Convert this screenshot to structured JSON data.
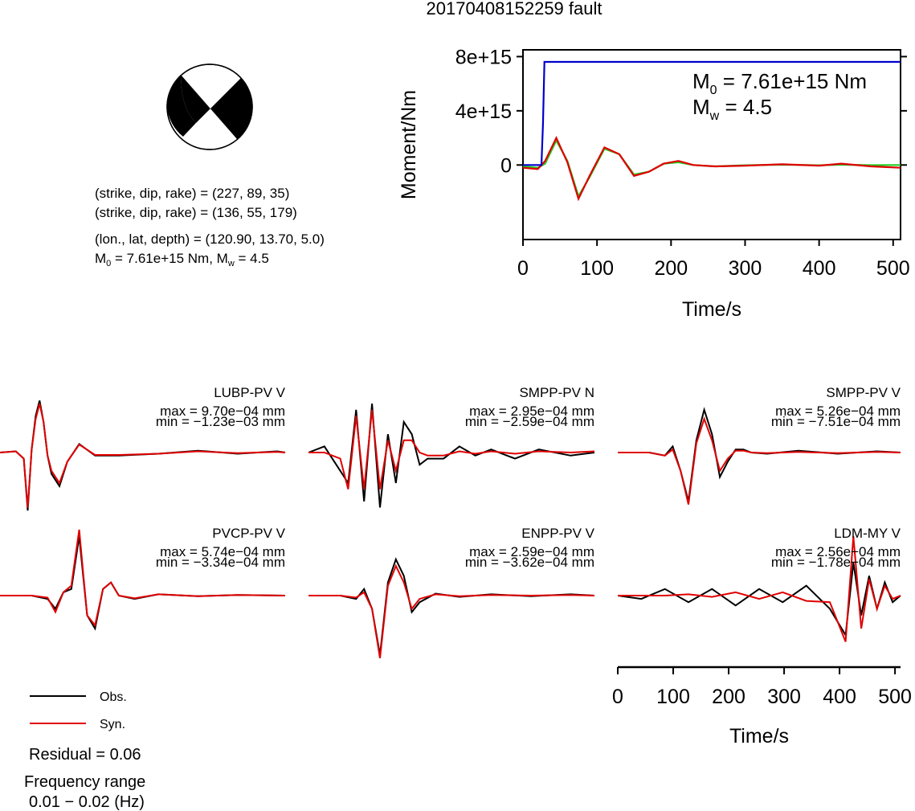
{
  "title": "20170408152259 fault",
  "mechanism": {
    "np1": "(strike, dip, rake) = (227, 89, 35)",
    "np2": "(strike, dip, rake) = (136, 55, 179)",
    "location": "(lon., lat, depth) = (120.90, 13.70, 5.0)",
    "moment_prefix": "M",
    "moment_sub": "0",
    "moment_rest": " = 7.61e+15 Nm, M",
    "mw_sub": "w",
    "mw_rest": " = 4.5"
  },
  "moment_plot": {
    "m0_prefix": "M",
    "m0_sub": "0",
    "m0_rest": " = 7.61e+15 Nm",
    "mw_prefix": "M",
    "mw_sub": "w",
    "mw_rest": " = 4.5",
    "ylabel": "Moment/Nm",
    "xlabel": "Time/s",
    "yticks": [
      "8e+15",
      "4e+15",
      "0"
    ],
    "xticks": [
      "0",
      "100",
      "200",
      "300",
      "400",
      "500"
    ]
  },
  "waveform_axis": {
    "xlabel": "Time/s",
    "xticks": [
      "0",
      "100",
      "200",
      "300",
      "400",
      "500"
    ]
  },
  "legend": {
    "obs_label": "Obs.",
    "syn_label": "Syn.",
    "obs_color": "#000000",
    "syn_color": "#e00000"
  },
  "residual": "Residual = 0.06",
  "freq_title": "Frequency range",
  "freq_range": "0.01 − 0.02 (Hz)",
  "stations": [
    {
      "name": "LUBP-PV V",
      "max": "max = 9.70e−04 mm",
      "min": "min = −1.23e−03 mm"
    },
    {
      "name": "SMPP-PV N",
      "max": "max = 2.95e−04 mm",
      "min": "min = −2.59e−04 mm"
    },
    {
      "name": "SMPP-PV V",
      "max": "max = 5.26e−04 mm",
      "min": "min = −7.51e−04 mm"
    },
    {
      "name": "PVCP-PV V",
      "max": "max = 5.74e−04 mm",
      "min": "min = −3.34e−04 mm"
    },
    {
      "name": "ENPP-PV V",
      "max": "max = 2.59e−04 mm",
      "min": "min = −3.62e−04 mm"
    },
    {
      "name": "LDM-MY V",
      "max": "max = 2.56e−04 mm",
      "min": "min = −1.78e−04 mm"
    }
  ],
  "chart_data": [
    {
      "type": "line",
      "title": "20170408152259 fault",
      "xlabel": "Time/s",
      "ylabel": "Moment/Nm",
      "xlim": [
        0,
        510
      ],
      "ylim": [
        -5500000000000000.0,
        8500000000000000.0
      ],
      "series": [
        {
          "color": "#0000cc",
          "x": [
            0,
            25,
            27,
            29,
            510
          ],
          "y": [
            0,
            0,
            3000000000000000.0,
            7610000000000000.0,
            7610000000000000.0
          ]
        },
        {
          "color": "#e00000",
          "x": [
            0,
            20,
            30,
            45,
            60,
            75,
            90,
            110,
            130,
            150,
            170,
            190,
            210,
            230,
            260,
            300,
            350,
            400,
            430,
            470,
            510
          ],
          "y": [
            -200000000000000.0,
            -300000000000000.0,
            300000000000000.0,
            2000000000000000.0,
            200000000000000.0,
            -2500000000000000.0,
            -800000000000000.0,
            1300000000000000.0,
            800000000000000.0,
            -800000000000000.0,
            -500000000000000.0,
            100000000000000.0,
            300000000000000.0,
            0.0,
            -100000000000000.0,
            -50000000000000.0,
            50000000000000.0,
            -50000000000000.0,
            100000000000000.0,
            -100000000000000.0,
            -200000000000000.0
          ]
        },
        {
          "color": "#22cc22",
          "x": [
            0,
            20,
            30,
            45,
            60,
            75,
            90,
            110,
            130,
            150,
            170,
            190,
            210,
            230,
            260,
            300,
            350,
            400,
            430,
            470,
            510
          ],
          "y": [
            -100000000000000.0,
            -200000000000000.0,
            100000000000000.0,
            1800000000000000.0,
            300000000000000.0,
            -2300000000000000.0,
            -900000000000000.0,
            1200000000000000.0,
            800000000000000.0,
            -700000000000000.0,
            -500000000000000.0,
            100000000000000.0,
            200000000000000.0,
            0.0,
            -100000000000000.0,
            -20000000000000.0,
            20000000000000.0,
            -20000000000000.0,
            20000000000000.0,
            -10000000000000.0,
            0.0
          ]
        }
      ]
    },
    {
      "type": "line",
      "xlabel": "Time/s",
      "xlim": [
        0,
        510
      ],
      "series": [
        {
          "name": "Obs.",
          "color": "#000000"
        },
        {
          "name": "Syn.",
          "color": "#e00000"
        }
      ],
      "panels": [
        {
          "station": "LUBP-PV V",
          "obs": {
            "x": [
              0,
              20,
              30,
              35,
              40,
              45,
              50,
              55,
              60,
              65,
              75,
              85,
              100,
              120,
              150,
              200,
              250,
              300,
              350,
              360
            ],
            "y": [
              0,
              0.02,
              -0.1,
              -0.95,
              0.05,
              0.6,
              0.85,
              0.5,
              -0.05,
              -0.35,
              -0.55,
              -0.15,
              0.14,
              -0.05,
              -0.05,
              -0.02,
              0.03,
              -0.02,
              0.02,
              0.0
            ]
          },
          "syn": {
            "x": [
              0,
              20,
              30,
              35,
              40,
              45,
              50,
              55,
              60,
              65,
              75,
              85,
              100,
              120,
              150,
              200,
              250,
              300,
              350,
              360
            ],
            "y": [
              0,
              0.02,
              -0.1,
              -0.9,
              0.05,
              0.55,
              0.8,
              0.5,
              -0.05,
              -0.3,
              -0.5,
              -0.15,
              0.13,
              -0.04,
              -0.04,
              -0.02,
              0.02,
              -0.01,
              0.01,
              0.0
            ]
          }
        },
        {
          "station": "SMPP-PV N",
          "obs": {
            "x": [
              0,
              20,
              40,
              50,
              60,
              70,
              80,
              90,
              100,
              110,
              120,
              130,
              140,
              150,
              170,
              190,
              210,
              230,
              260,
              290,
              330,
              360
            ],
            "y": [
              0,
              0.1,
              -0.3,
              -0.5,
              0.7,
              -0.8,
              0.8,
              -0.9,
              0.3,
              -0.5,
              0.5,
              0.3,
              -0.2,
              -0.1,
              -0.1,
              0.1,
              -0.05,
              0.05,
              -0.1,
              0.05,
              -0.05,
              0.0
            ]
          },
          "syn": {
            "x": [
              0,
              20,
              40,
              50,
              60,
              70,
              80,
              90,
              100,
              110,
              120,
              130,
              140,
              150,
              170,
              190,
              210,
              230,
              260,
              290,
              330,
              360
            ],
            "y": [
              0,
              0.0,
              -0.1,
              -0.6,
              0.6,
              -0.6,
              0.7,
              -0.6,
              0.2,
              -0.3,
              0.2,
              0.2,
              0.0,
              -0.05,
              -0.05,
              0.02,
              -0.02,
              0.02,
              -0.02,
              0.02,
              0.0,
              0.02
            ]
          }
        },
        {
          "station": "SMPP-PV V",
          "obs": {
            "x": [
              0,
              40,
              60,
              70,
              80,
              90,
              100,
              110,
              120,
              130,
              140,
              150,
              160,
              170,
              190,
              230,
              280,
              330,
              360
            ],
            "y": [
              0,
              0.0,
              -0.05,
              0.1,
              -0.3,
              -0.8,
              0.2,
              0.7,
              0.3,
              -0.4,
              -0.15,
              0.05,
              0.05,
              0.0,
              -0.02,
              0.03,
              -0.02,
              0.02,
              0.0
            ]
          },
          "syn": {
            "x": [
              0,
              40,
              60,
              70,
              80,
              90,
              100,
              110,
              120,
              130,
              140,
              150,
              160,
              170,
              190,
              230,
              280,
              330,
              360
            ],
            "y": [
              0,
              0.0,
              -0.05,
              0.05,
              -0.3,
              -0.85,
              0.15,
              0.55,
              0.2,
              -0.3,
              -0.1,
              0.03,
              0.03,
              0.0,
              -0.01,
              0.01,
              -0.01,
              0.01,
              0.0
            ]
          }
        },
        {
          "station": "PVCP-PV V",
          "obs": {
            "x": [
              0,
              40,
              60,
              70,
              80,
              90,
              100,
              105,
              110,
              120,
              130,
              140,
              150,
              170,
              200,
              250,
              300,
              360
            ],
            "y": [
              0,
              0.0,
              -0.05,
              -0.2,
              0.05,
              0.1,
              0.9,
              0.3,
              -0.3,
              -0.5,
              0.1,
              0.2,
              0.0,
              -0.05,
              0.02,
              -0.01,
              0.01,
              0.0
            ]
          },
          "syn": {
            "x": [
              0,
              40,
              60,
              70,
              80,
              90,
              100,
              105,
              110,
              120,
              130,
              140,
              150,
              170,
              200,
              250,
              300,
              360
            ],
            "y": [
              0,
              0.0,
              -0.03,
              -0.25,
              0.05,
              0.15,
              1.0,
              0.35,
              -0.3,
              -0.45,
              0.1,
              0.2,
              0.0,
              -0.04,
              0.02,
              -0.01,
              0.01,
              0.0
            ]
          }
        },
        {
          "station": "ENPP-PV V",
          "obs": {
            "x": [
              0,
              40,
              60,
              70,
              80,
              90,
              100,
              110,
              120,
              130,
              140,
              160,
              190,
              230,
              280,
              330,
              360
            ],
            "y": [
              0,
              0.0,
              -0.05,
              0.1,
              -0.2,
              -0.9,
              0.2,
              0.55,
              0.3,
              -0.25,
              -0.1,
              0.03,
              -0.02,
              0.02,
              -0.01,
              0.02,
              0.0
            ]
          },
          "syn": {
            "x": [
              0,
              40,
              60,
              70,
              80,
              90,
              100,
              110,
              120,
              130,
              140,
              160,
              190,
              230,
              280,
              330,
              360
            ],
            "y": [
              0,
              0.0,
              -0.03,
              0.05,
              -0.2,
              -0.95,
              0.15,
              0.45,
              0.2,
              -0.2,
              -0.05,
              0.02,
              -0.01,
              0.01,
              0.0,
              0.01,
              0.0
            ]
          }
        },
        {
          "station": "LDM-MY V",
          "obs": {
            "x": [
              0,
              30,
              60,
              90,
              120,
              150,
              180,
              210,
              240,
              270,
              290,
              300,
              310,
              320,
              330,
              340,
              350,
              360
            ],
            "y": [
              0,
              -0.05,
              0.1,
              -0.1,
              0.1,
              -0.15,
              0.1,
              -0.1,
              0.15,
              -0.2,
              -0.6,
              0.5,
              -0.3,
              0.3,
              -0.2,
              0.2,
              -0.1,
              0.0
            ]
          },
          "syn": {
            "x": [
              0,
              30,
              60,
              90,
              120,
              150,
              180,
              210,
              240,
              270,
              290,
              300,
              310,
              320,
              330,
              340,
              350,
              360
            ],
            "y": [
              0,
              0.0,
              0.0,
              0.02,
              -0.02,
              0.05,
              -0.05,
              0.05,
              -0.08,
              -0.1,
              -0.7,
              0.9,
              -0.5,
              0.25,
              -0.2,
              0.15,
              -0.05,
              0.0
            ]
          }
        }
      ]
    }
  ]
}
